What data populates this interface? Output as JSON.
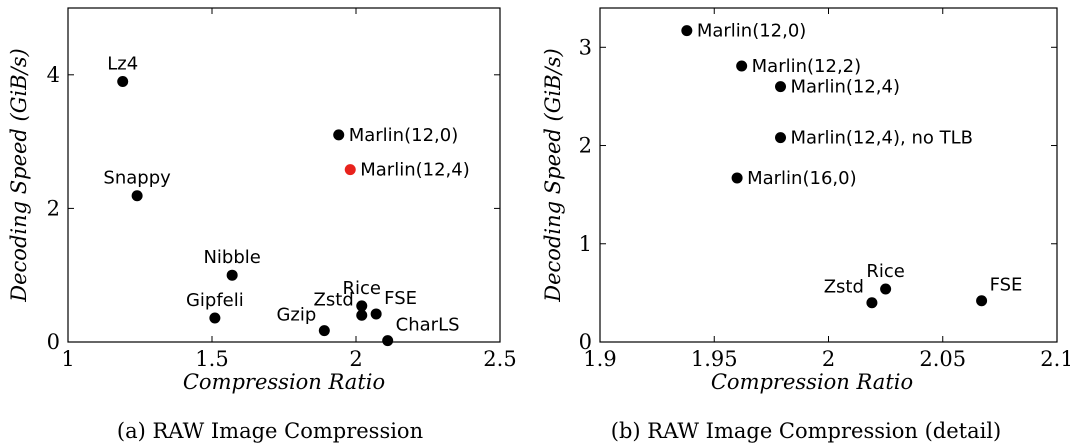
{
  "chart_data": [
    {
      "type": "scatter",
      "caption": "(a) RAW Image Compression",
      "xlabel": "Compression Ratio",
      "ylabel": "Decoding Speed (GiB/s)",
      "xlim": [
        1,
        2.5
      ],
      "ylim": [
        0,
        5
      ],
      "xticks": [
        1,
        1.5,
        2,
        2.5
      ],
      "xtick_labels": [
        "1",
        "1.5",
        "2",
        "2.5"
      ],
      "yticks": [
        0,
        2,
        4
      ],
      "ytick_labels": [
        "0",
        "2",
        "4"
      ],
      "grid": false,
      "highlight_color": "#e8221c",
      "points": [
        {
          "label": "Lz4",
          "x": 1.19,
          "y": 3.9,
          "pos": "above"
        },
        {
          "label": "Snappy",
          "x": 1.24,
          "y": 2.19,
          "pos": "above"
        },
        {
          "label": "Nibble",
          "x": 1.57,
          "y": 1.0,
          "pos": "above"
        },
        {
          "label": "Gipfeli",
          "x": 1.51,
          "y": 0.36,
          "pos": "above"
        },
        {
          "label": "Gzip",
          "x": 1.89,
          "y": 0.17,
          "pos": "above-left"
        },
        {
          "label": "Zstd",
          "x": 2.02,
          "y": 0.4,
          "pos": "above-left"
        },
        {
          "label": "Rice",
          "x": 2.02,
          "y": 0.54,
          "pos": "above"
        },
        {
          "label": "FSE",
          "x": 2.07,
          "y": 0.42,
          "pos": "above-right"
        },
        {
          "label": "CharLS",
          "x": 2.11,
          "y": 0.02,
          "pos": "above-right"
        },
        {
          "label": "Marlin(12,0)",
          "x": 1.94,
          "y": 3.1,
          "pos": "right"
        },
        {
          "label": "Marlin(12,4)",
          "x": 1.98,
          "y": 2.58,
          "pos": "right",
          "highlight": true
        }
      ]
    },
    {
      "type": "scatter",
      "caption": "(b) RAW Image Compression (detail)",
      "xlabel": "Compression Ratio",
      "ylabel": "Decoding Speed (GiB/s)",
      "xlim": [
        1.9,
        2.1
      ],
      "ylim": [
        0,
        3.4
      ],
      "xticks": [
        1.9,
        1.95,
        2,
        2.05,
        2.1
      ],
      "xtick_labels": [
        "1.9",
        "1.95",
        "2",
        "2.05",
        "2.1"
      ],
      "yticks": [
        0,
        1,
        2,
        3
      ],
      "ytick_labels": [
        "0",
        "1",
        "2",
        "3"
      ],
      "grid": false,
      "points": [
        {
          "label": "Marlin(12,0)",
          "x": 1.938,
          "y": 3.17,
          "pos": "right"
        },
        {
          "label": "Marlin(12,2)",
          "x": 1.962,
          "y": 2.81,
          "pos": "right"
        },
        {
          "label": "Marlin(12,4)",
          "x": 1.979,
          "y": 2.6,
          "pos": "right"
        },
        {
          "label": "Marlin(12,4), no TLB",
          "x": 1.979,
          "y": 2.08,
          "pos": "right"
        },
        {
          "label": "Marlin(16,0)",
          "x": 1.96,
          "y": 1.67,
          "pos": "right"
        },
        {
          "label": "Zstd",
          "x": 2.019,
          "y": 0.4,
          "pos": "above-left"
        },
        {
          "label": "Rice",
          "x": 2.025,
          "y": 0.54,
          "pos": "above"
        },
        {
          "label": "FSE",
          "x": 2.067,
          "y": 0.42,
          "pos": "above-right"
        }
      ]
    }
  ]
}
